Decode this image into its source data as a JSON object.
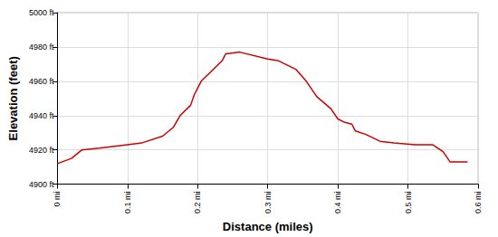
{
  "chart_data": {
    "type": "line",
    "x_label": "Distance (miles)",
    "y_label": "Elevation (feet)",
    "color": "#cc0000",
    "grid": true,
    "x": [
      0,
      0.02,
      0.035,
      0.06,
      0.1,
      0.12,
      0.15,
      0.165,
      0.175,
      0.19,
      0.195,
      0.205,
      0.22,
      0.235,
      0.24,
      0.26,
      0.3,
      0.315,
      0.34,
      0.355,
      0.37,
      0.39,
      0.4,
      0.41,
      0.42,
      0.425,
      0.44,
      0.46,
      0.48,
      0.51,
      0.535,
      0.55,
      0.56,
      0.585
    ],
    "values": [
      4912,
      4915,
      4920,
      4921,
      4923,
      4924,
      4928,
      4933,
      4940,
      4946,
      4952,
      4960,
      4966,
      4972,
      4976,
      4977,
      4973,
      4972,
      4967,
      4960,
      4951,
      4944,
      4938,
      4936,
      4935,
      4931,
      4929,
      4925,
      4924,
      4923,
      4923,
      4919,
      4913,
      4913
    ],
    "xlim": [
      0,
      0.6
    ],
    "xticks": [
      {
        "value": 0,
        "label": "0 mi"
      },
      {
        "value": 0.1,
        "label": "0.1 mi"
      },
      {
        "value": 0.2,
        "label": "0.2 mi"
      },
      {
        "value": 0.3,
        "label": "0.3 mi"
      },
      {
        "value": 0.4,
        "label": "0.4 mi"
      },
      {
        "value": 0.5,
        "label": "0.5 mi"
      },
      {
        "value": 0.6,
        "label": "0.6 mi"
      }
    ],
    "ylim": [
      4900,
      5000
    ],
    "yticks": [
      {
        "value": 4900,
        "label": "4900 ft"
      },
      {
        "value": 4920,
        "label": "4920 ft"
      },
      {
        "value": 4940,
        "label": "4940 ft"
      },
      {
        "value": 4960,
        "label": "4960 ft"
      },
      {
        "value": 4980,
        "label": "4980 ft"
      },
      {
        "value": 5000,
        "label": "5000 ft"
      }
    ]
  }
}
